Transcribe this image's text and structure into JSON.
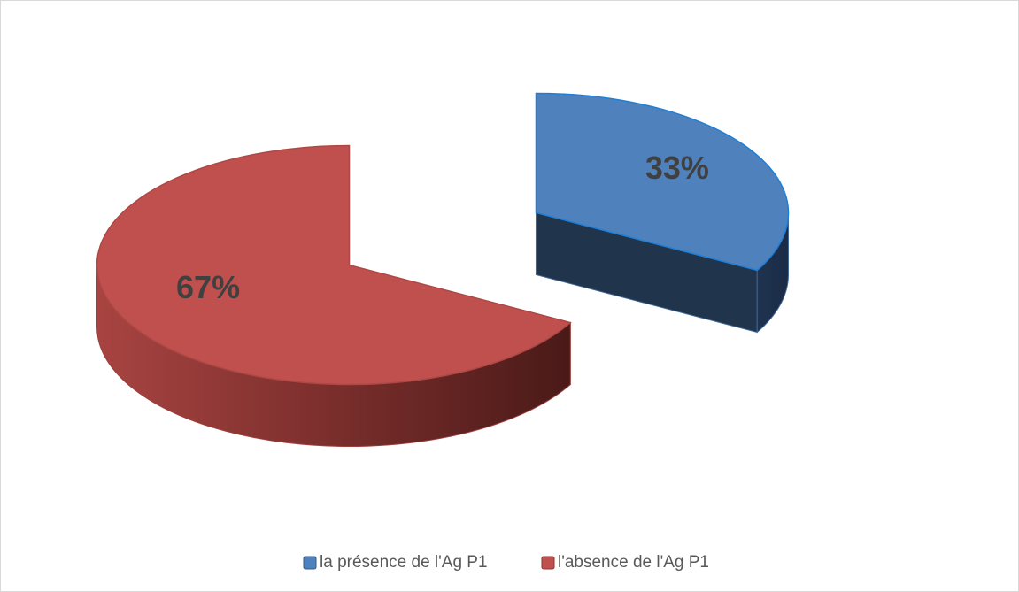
{
  "chart_data": {
    "type": "pie",
    "categories": [
      "la présence de l'Ag P1",
      "l'absence de l'Ag P1"
    ],
    "values": [
      33,
      67
    ],
    "value_labels": [
      "33%",
      "67%"
    ],
    "colors": [
      "#4f81bd",
      "#c0504d"
    ],
    "legend": "bottom"
  }
}
